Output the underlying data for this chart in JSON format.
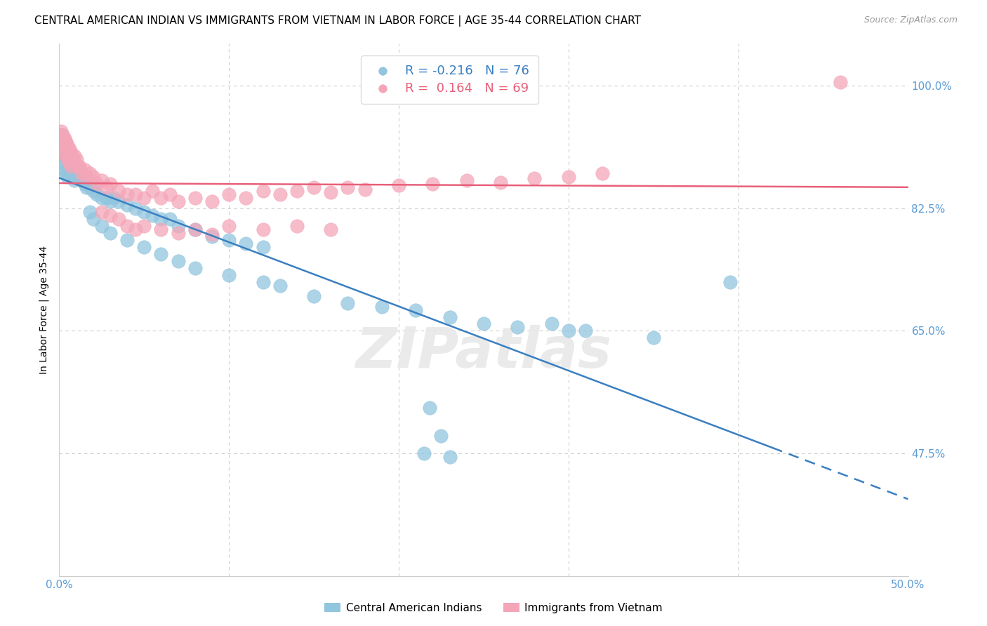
{
  "title": "CENTRAL AMERICAN INDIAN VS IMMIGRANTS FROM VIETNAM IN LABOR FORCE | AGE 35-44 CORRELATION CHART",
  "source": "Source: ZipAtlas.com",
  "ylabel": "In Labor Force | Age 35-44",
  "xlim": [
    0.0,
    0.5
  ],
  "ylim": [
    0.3,
    1.06
  ],
  "legend_blue_label": "Central American Indians",
  "legend_pink_label": "Immigrants from Vietnam",
  "R_blue": -0.216,
  "N_blue": 76,
  "R_pink": 0.164,
  "N_pink": 69,
  "blue_color": "#92c5de",
  "pink_color": "#f4a6b8",
  "blue_line_color": "#3a7fc1",
  "pink_line_color": "#e8607a",
  "background_color": "#ffffff",
  "grid_color": "#cccccc",
  "title_fontsize": 11,
  "tick_color": "#5b9bd5",
  "marker_size": 14,
  "blue_x": [
    0.001,
    0.001,
    0.002,
    0.002,
    0.002,
    0.003,
    0.003,
    0.003,
    0.004,
    0.004,
    0.004,
    0.005,
    0.005,
    0.005,
    0.006,
    0.006,
    0.007,
    0.007,
    0.008,
    0.008,
    0.009,
    0.009,
    0.01,
    0.011,
    0.012,
    0.013,
    0.015,
    0.016,
    0.018,
    0.02,
    0.022,
    0.025,
    0.028,
    0.03,
    0.032,
    0.035,
    0.04,
    0.045,
    0.05,
    0.055,
    0.06,
    0.065,
    0.07,
    0.08,
    0.09,
    0.1,
    0.11,
    0.12,
    0.018,
    0.02,
    0.025,
    0.03,
    0.04,
    0.05,
    0.06,
    0.07,
    0.08,
    0.1,
    0.12,
    0.13,
    0.15,
    0.17,
    0.19,
    0.21,
    0.23,
    0.25,
    0.27,
    0.3,
    0.35,
    0.395,
    0.215,
    0.23,
    0.218,
    0.225,
    0.29,
    0.31
  ],
  "blue_y": [
    0.93,
    0.91,
    0.925,
    0.905,
    0.89,
    0.92,
    0.9,
    0.88,
    0.915,
    0.895,
    0.875,
    0.91,
    0.89,
    0.87,
    0.905,
    0.88,
    0.9,
    0.875,
    0.895,
    0.87,
    0.885,
    0.865,
    0.88,
    0.875,
    0.87,
    0.865,
    0.86,
    0.855,
    0.855,
    0.85,
    0.845,
    0.84,
    0.84,
    0.835,
    0.84,
    0.835,
    0.83,
    0.825,
    0.82,
    0.815,
    0.81,
    0.81,
    0.8,
    0.795,
    0.785,
    0.78,
    0.775,
    0.77,
    0.82,
    0.81,
    0.8,
    0.79,
    0.78,
    0.77,
    0.76,
    0.75,
    0.74,
    0.73,
    0.72,
    0.715,
    0.7,
    0.69,
    0.685,
    0.68,
    0.67,
    0.66,
    0.655,
    0.65,
    0.64,
    0.72,
    0.475,
    0.47,
    0.54,
    0.5,
    0.66,
    0.65
  ],
  "pink_x": [
    0.001,
    0.001,
    0.002,
    0.002,
    0.003,
    0.003,
    0.004,
    0.004,
    0.005,
    0.005,
    0.006,
    0.006,
    0.007,
    0.007,
    0.008,
    0.009,
    0.01,
    0.011,
    0.012,
    0.013,
    0.015,
    0.016,
    0.018,
    0.02,
    0.022,
    0.025,
    0.028,
    0.03,
    0.035,
    0.04,
    0.045,
    0.05,
    0.055,
    0.06,
    0.065,
    0.07,
    0.08,
    0.09,
    0.1,
    0.11,
    0.12,
    0.13,
    0.14,
    0.15,
    0.16,
    0.17,
    0.18,
    0.2,
    0.22,
    0.24,
    0.26,
    0.28,
    0.3,
    0.32,
    0.025,
    0.03,
    0.035,
    0.04,
    0.045,
    0.05,
    0.06,
    0.07,
    0.08,
    0.09,
    0.1,
    0.12,
    0.14,
    0.16,
    0.46
  ],
  "pink_y": [
    0.935,
    0.92,
    0.93,
    0.915,
    0.925,
    0.905,
    0.92,
    0.9,
    0.915,
    0.895,
    0.91,
    0.89,
    0.905,
    0.885,
    0.895,
    0.9,
    0.895,
    0.885,
    0.885,
    0.875,
    0.88,
    0.87,
    0.875,
    0.87,
    0.86,
    0.865,
    0.855,
    0.86,
    0.85,
    0.845,
    0.845,
    0.84,
    0.85,
    0.84,
    0.845,
    0.835,
    0.84,
    0.835,
    0.845,
    0.84,
    0.85,
    0.845,
    0.85,
    0.855,
    0.848,
    0.855,
    0.852,
    0.858,
    0.86,
    0.865,
    0.862,
    0.868,
    0.87,
    0.875,
    0.82,
    0.815,
    0.81,
    0.8,
    0.795,
    0.8,
    0.795,
    0.79,
    0.795,
    0.788,
    0.8,
    0.795,
    0.8,
    0.795,
    1.005
  ]
}
